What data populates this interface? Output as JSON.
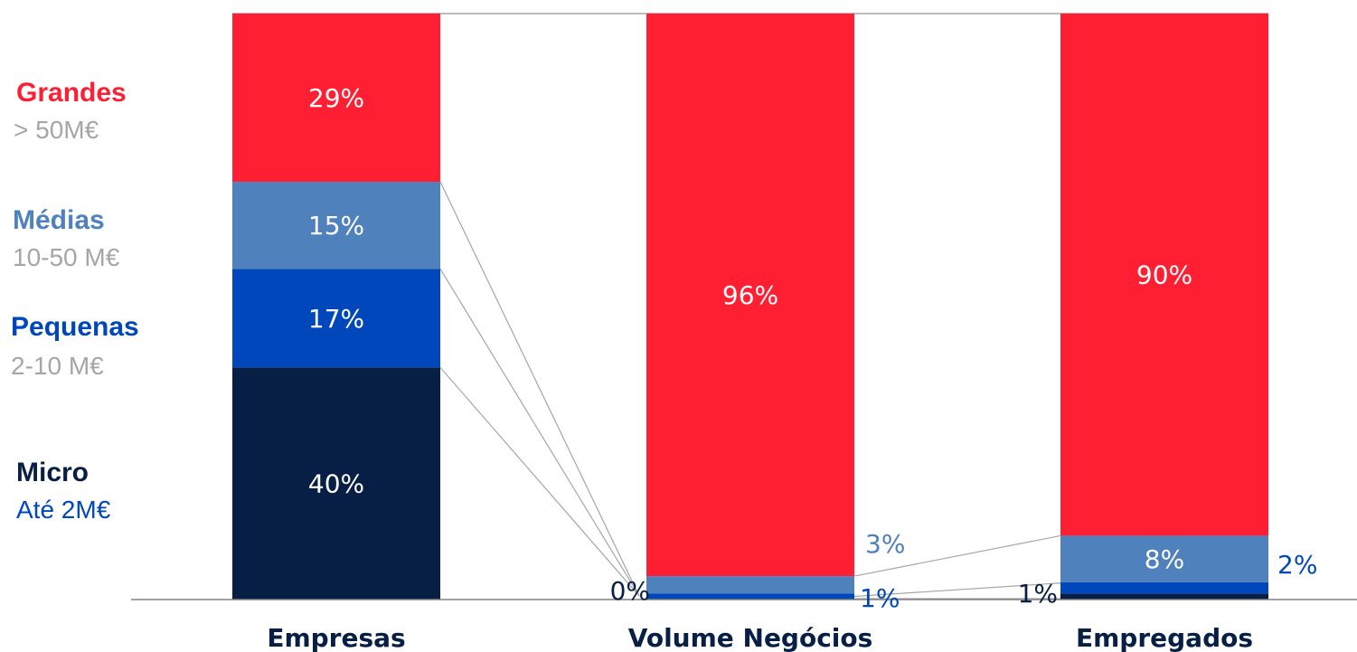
{
  "colors": {
    "micro": "#081f45",
    "pequenas": "#0047bb",
    "medias": "#4f81bd",
    "grandes": "#ff1f33",
    "sub_text": "#a6a6a6",
    "connector": "#a6a6a6",
    "axis": "#808080"
  },
  "legend": [
    {
      "key": "grandes",
      "name": "Grandes",
      "range": "> 50M€"
    },
    {
      "key": "medias",
      "name": "Médias",
      "range": "10-50 M€"
    },
    {
      "key": "pequenas",
      "name": "Pequenas",
      "range": "2-10 M€"
    },
    {
      "key": "micro",
      "name": "Micro",
      "range": "Até 2M€"
    }
  ],
  "chart_data": {
    "type": "bar",
    "stacked": true,
    "categories": [
      "Empresas",
      "Volume Negócios",
      "Empregados"
    ],
    "series": [
      {
        "name": "Micro",
        "values": [
          40,
          0,
          1
        ],
        "labels": [
          "40%",
          "0%",
          "1%"
        ]
      },
      {
        "name": "Pequenas",
        "values": [
          17,
          1,
          2
        ],
        "labels": [
          "17%",
          "1%",
          "2%"
        ]
      },
      {
        "name": "Médias",
        "values": [
          15,
          3,
          8
        ],
        "labels": [
          "15%",
          "3%",
          "8%"
        ]
      },
      {
        "name": "Grandes",
        "values": [
          29,
          96,
          90
        ],
        "labels": [
          "29%",
          "96%",
          "90%"
        ]
      }
    ],
    "ylim": [
      0,
      100
    ],
    "grid": false
  }
}
